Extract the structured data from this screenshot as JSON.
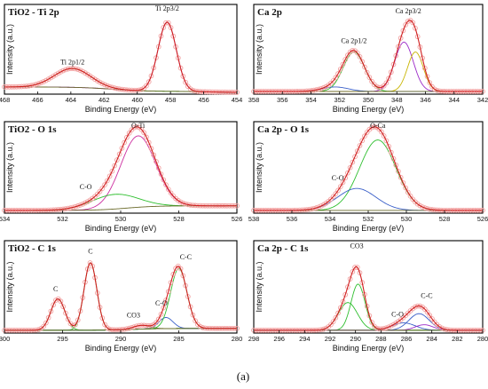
{
  "caption": "(a)",
  "colors": {
    "raw_points": "#f2a0a0",
    "envelope": "#d01f1f",
    "background": "#6a6a2a",
    "frame": "#000000"
  },
  "chart_data": [
    {
      "type": "line",
      "title": "TiO2 - Ti 2p",
      "xlabel": "Binding Energy (eV)",
      "ylabel": "Intensity (a.u.)",
      "xlim": [
        468,
        454
      ],
      "x_ticks": [
        "468",
        "466",
        "464",
        "462",
        "460",
        "458",
        "456",
        "454"
      ],
      "ylim": [
        0,
        1
      ],
      "components": [
        {
          "center": 463.9,
          "width": 1.1,
          "height": 0.21,
          "color": "#2fbf2f"
        },
        {
          "center": 458.2,
          "width": 0.55,
          "height": 0.77,
          "color": "#9b28c8"
        }
      ],
      "baseline": {
        "type": "ti2p",
        "color": "#6a6a2a"
      },
      "annotations": [
        {
          "text": "Ti 2p1/2",
          "x": 463.9,
          "y": 0.33
        },
        {
          "text": "Ti 2p3/2",
          "x": 458.2,
          "y": 0.93
        }
      ]
    },
    {
      "type": "line",
      "title": "Ca 2p",
      "xlabel": "Binding Energy (eV)",
      "ylabel": "Intensity (a.u.)",
      "xlim": [
        358,
        342
      ],
      "x_ticks": [
        "358",
        "356",
        "354",
        "352",
        "350",
        "348",
        "346",
        "344",
        "342"
      ],
      "ylim": [
        0,
        1
      ],
      "components": [
        {
          "center": 351.0,
          "width": 0.75,
          "height": 0.44,
          "color": "#2fbf2f"
        },
        {
          "center": 352.3,
          "width": 0.9,
          "height": 0.05,
          "color": "#3a5fc8"
        },
        {
          "center": 347.5,
          "width": 0.65,
          "height": 0.55,
          "color": "#9b28c8"
        },
        {
          "center": 346.7,
          "width": 0.55,
          "height": 0.44,
          "color": "#c8b400"
        }
      ],
      "baseline": {
        "type": "flat",
        "color": "#6a6a2a"
      },
      "annotations": [
        {
          "text": "Ca 2p1/2",
          "x": 351.0,
          "y": 0.57
        },
        {
          "text": "Ca 2p3/2",
          "x": 347.2,
          "y": 0.9
        }
      ]
    },
    {
      "type": "line",
      "title": "TiO2 - O 1s",
      "xlabel": "Binding Energy (eV)",
      "ylabel": "Intensity (a.u.)",
      "xlim": [
        534,
        526
      ],
      "x_ticks": [
        "534",
        "532",
        "530",
        "528",
        "526"
      ],
      "ylim": [
        0,
        1
      ],
      "components": [
        {
          "center": 529.4,
          "width": 0.6,
          "height": 0.78,
          "color": "#cc2fa0"
        },
        {
          "center": 530.2,
          "width": 0.8,
          "height": 0.16,
          "color": "#2fbf2f"
        }
      ],
      "baseline": {
        "type": "step",
        "color": "#6a6a2a"
      },
      "annotations": [
        {
          "text": "O-Ti",
          "x": 529.4,
          "y": 0.93
        },
        {
          "text": "C-O",
          "x": 531.2,
          "y": 0.26
        }
      ]
    },
    {
      "type": "line",
      "title": "Ca 2p - O 1s",
      "xlabel": "Binding Energy (eV)",
      "ylabel": "Intensity (a.u.)",
      "xlim": [
        538,
        526
      ],
      "x_ticks": [
        "538",
        "536",
        "534",
        "532",
        "530",
        "528",
        "526"
      ],
      "ylim": [
        0,
        1
      ],
      "components": [
        {
          "center": 531.5,
          "width": 0.95,
          "height": 0.77,
          "color": "#2fbf2f"
        },
        {
          "center": 532.6,
          "width": 1.0,
          "height": 0.24,
          "color": "#3a5fc8"
        }
      ],
      "baseline": {
        "type": "flat",
        "color": "#6a6a2a"
      },
      "annotations": [
        {
          "text": "O-Ca",
          "x": 531.5,
          "y": 0.93
        },
        {
          "text": "C-O",
          "x": 533.6,
          "y": 0.36
        }
      ]
    },
    {
      "type": "line",
      "title": "TiO2 - C 1s",
      "xlabel": "Binding Energy (eV)",
      "ylabel": "Intensity (a.u.)",
      "xlim": [
        300,
        280
      ],
      "x_ticks": [
        "300",
        "295",
        "290",
        "285",
        "280"
      ],
      "ylim": [
        0,
        1
      ],
      "components": [
        {
          "center": 295.4,
          "width": 0.6,
          "height": 0.34,
          "color": "#2fbf2f"
        },
        {
          "center": 292.6,
          "width": 0.55,
          "height": 0.73,
          "color": "#2fbf2f"
        },
        {
          "center": 288.2,
          "width": 0.7,
          "height": 0.04,
          "color": "#6a6a2a"
        },
        {
          "center": 286.1,
          "width": 0.6,
          "height": 0.12,
          "color": "#3a5fc8"
        },
        {
          "center": 285.0,
          "width": 0.7,
          "height": 0.65,
          "color": "#2fbf2f"
        }
      ],
      "baseline": {
        "type": "c1s",
        "color": "#6a6a2a"
      },
      "annotations": [
        {
          "text": "C",
          "x": 295.6,
          "y": 0.45
        },
        {
          "text": "C",
          "x": 292.6,
          "y": 0.86
        },
        {
          "text": "CO3",
          "x": 288.9,
          "y": 0.17
        },
        {
          "text": "C-O",
          "x": 286.5,
          "y": 0.3
        },
        {
          "text": "C-C",
          "x": 284.4,
          "y": 0.8
        }
      ]
    },
    {
      "type": "line",
      "title": "Ca 2p - C 1s",
      "xlabel": "Binding Energy (eV)",
      "ylabel": "Intensity (a.u.)",
      "xlim": [
        298,
        280
      ],
      "x_ticks": [
        "298",
        "296",
        "294",
        "292",
        "290",
        "288",
        "286",
        "284",
        "282",
        "280"
      ],
      "ylim": [
        0,
        1
      ],
      "components": [
        {
          "center": 290.6,
          "width": 0.75,
          "height": 0.3,
          "color": "#2fbf2f"
        },
        {
          "center": 289.8,
          "width": 0.55,
          "height": 0.5,
          "color": "#2fbf2f"
        },
        {
          "center": 286.2,
          "width": 0.9,
          "height": 0.08,
          "color": "#3a5fc8"
        },
        {
          "center": 285.0,
          "width": 0.8,
          "height": 0.18,
          "color": "#3a5fc8"
        },
        {
          "center": 284.6,
          "width": 0.7,
          "height": 0.06,
          "color": "#9b28c8"
        }
      ],
      "baseline": {
        "type": "flat",
        "color": "#6a6a2a"
      },
      "annotations": [
        {
          "text": "CO3",
          "x": 289.9,
          "y": 0.92
        },
        {
          "text": "C-O",
          "x": 286.7,
          "y": 0.18
        },
        {
          "text": "C-C",
          "x": 284.4,
          "y": 0.38
        }
      ]
    }
  ]
}
